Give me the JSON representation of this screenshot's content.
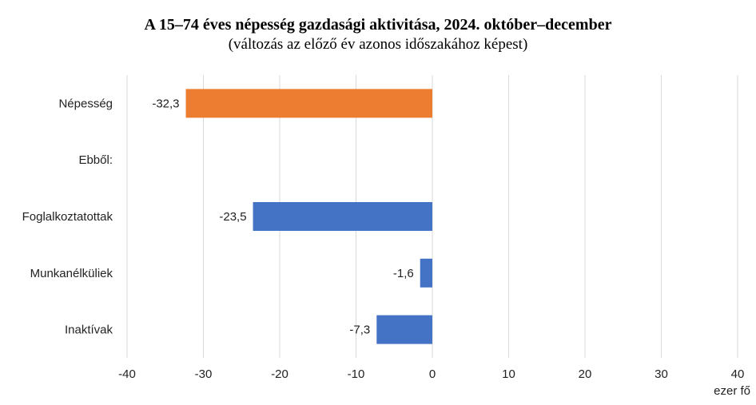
{
  "chart_data": {
    "type": "bar",
    "orientation": "horizontal",
    "title": "A 15–74 éves népesség gazdasági aktivitása, 2024. október–december",
    "subtitle": "(változás az előző év azonos időszakához képest)",
    "categories": [
      "Népesség",
      "Ebből:",
      "Foglalkoztatottak",
      "Munkanélküliek",
      "Inaktívak"
    ],
    "values": [
      -32.3,
      null,
      -23.5,
      -1.6,
      -7.3
    ],
    "data_labels": [
      "-32,3",
      "",
      "-23,5",
      "-1,6",
      "-7,3"
    ],
    "bar_colors": [
      "#ED7D31",
      null,
      "#4472C4",
      "#4472C4",
      "#4472C4"
    ],
    "xlim": [
      -40,
      40
    ],
    "x_ticks": [
      -40,
      -30,
      -20,
      -10,
      0,
      10,
      20,
      30,
      40
    ],
    "x_tick_labels": [
      "-40",
      "-30",
      "-20",
      "-10",
      "0",
      "10",
      "20",
      "30",
      "40"
    ],
    "xlabel": "ezer fő",
    "grid": "vertical",
    "gridline_color": "#d9d9d9"
  }
}
